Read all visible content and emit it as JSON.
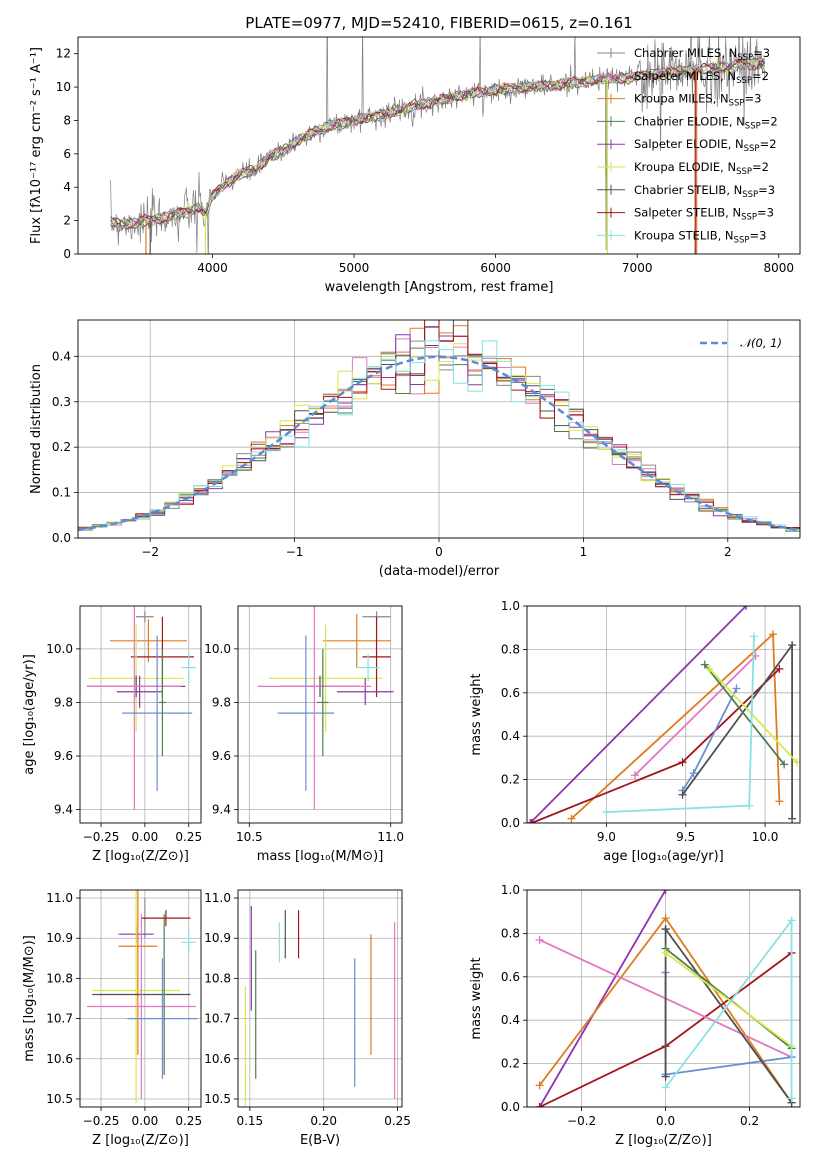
{
  "colors": {
    "Chabrier MILES": "#8a8a8a",
    "Salpeter MILES": "#e377c2",
    "Kroupa MILES": "#e07b1f",
    "Chabrier ELODIE": "#4e7d4e",
    "Salpeter ELODIE": "#8e34b1",
    "Kroupa ELODIE": "#d6e84a",
    "Chabrier STELIB": "#505050",
    "Salpeter STELIB": "#a0161b",
    "Kroupa STELIB": "#8be0e0",
    "blue": "#6a8dd6",
    "pink": "#e58ab6"
  },
  "chart_data": [
    {
      "type": "line",
      "name": "spectrum",
      "title": "PLATE=0977, MJD=52410, FIBERID=0615, z=0.161",
      "xlabel": "wavelength [Angstrom, rest frame]",
      "ylabel": "Flux [fλ10⁻¹⁷ erg cm⁻² s⁻¹ A⁻¹]",
      "xlim": [
        3050,
        8150
      ],
      "ylim": [
        0,
        13
      ],
      "xticks": [
        "4000",
        "5000",
        "6000",
        "7000",
        "8000"
      ],
      "yticks": [
        "0",
        "2",
        "4",
        "6",
        "8",
        "10",
        "12"
      ],
      "grid": false,
      "legend_position": "top-right",
      "legend": [
        {
          "model": "Chabrier MILES",
          "label": "Chabrier MILES, N",
          "sub": "SSP",
          "tail": "=3"
        },
        {
          "model": "Salpeter MILES",
          "label": "Salpeter MILES, N",
          "sub": "SSP",
          "tail": "=2"
        },
        {
          "model": "Kroupa MILES",
          "label": "Kroupa MILES, N",
          "sub": "SSP",
          "tail": "=3"
        },
        {
          "model": "Chabrier ELODIE",
          "label": "Chabrier ELODIE, N",
          "sub": "SSP",
          "tail": "=2"
        },
        {
          "model": "Salpeter ELODIE",
          "label": "Salpeter ELODIE, N",
          "sub": "SSP",
          "tail": "=2"
        },
        {
          "model": "Kroupa ELODIE",
          "label": "Kroupa ELODIE, N",
          "sub": "SSP",
          "tail": "=2"
        },
        {
          "model": "Chabrier STELIB",
          "label": "Chabrier STELIB, N",
          "sub": "SSP",
          "tail": "=3"
        },
        {
          "model": "Salpeter STELIB",
          "label": "Salpeter STELIB, N",
          "sub": "SSP",
          "tail": "=3"
        },
        {
          "model": "Kroupa STELIB",
          "label": "Kroupa STELIB, N",
          "sub": "SSP",
          "tail": "=3"
        }
      ],
      "continuum": [
        [
          3280,
          1.9
        ],
        [
          3400,
          1.8
        ],
        [
          3500,
          1.9
        ],
        [
          3600,
          2.1
        ],
        [
          3700,
          2.3
        ],
        [
          3800,
          2.5
        ],
        [
          3900,
          2.8
        ],
        [
          3950,
          2.4
        ],
        [
          4000,
          3.5
        ],
        [
          4100,
          4.3
        ],
        [
          4200,
          4.8
        ],
        [
          4300,
          5.0
        ],
        [
          4400,
          5.8
        ],
        [
          4500,
          6.2
        ],
        [
          4600,
          6.8
        ],
        [
          4700,
          7.2
        ],
        [
          4800,
          7.6
        ],
        [
          4900,
          7.8
        ],
        [
          5000,
          8.0
        ],
        [
          5100,
          8.2
        ],
        [
          5200,
          8.3
        ],
        [
          5300,
          8.6
        ],
        [
          5400,
          8.8
        ],
        [
          5500,
          9.0
        ],
        [
          5600,
          9.2
        ],
        [
          5700,
          9.4
        ],
        [
          5800,
          9.6
        ],
        [
          5900,
          9.7
        ],
        [
          6000,
          9.8
        ],
        [
          6200,
          10.0
        ],
        [
          6400,
          10.1
        ],
        [
          6600,
          10.3
        ],
        [
          6800,
          10.5
        ],
        [
          7000,
          10.6
        ],
        [
          7200,
          10.9
        ],
        [
          7400,
          11.0
        ],
        [
          7600,
          11.2
        ],
        [
          7900,
          11.5
        ]
      ]
    },
    {
      "type": "histogram",
      "name": "residuals",
      "xlabel": "(data-model)/error",
      "ylabel": "Normed distribution",
      "xlim": [
        -2.5,
        2.5
      ],
      "ylim": [
        0,
        0.48
      ],
      "xticks": [
        "−2",
        "−1",
        "0",
        "1",
        "2"
      ],
      "yticks": [
        "0.0",
        "0.1",
        "0.2",
        "0.3",
        "0.4"
      ],
      "grid": true,
      "legend_position": "top-right",
      "legend": [
        {
          "label": "𝒩(0, 1)"
        }
      ],
      "reference": {
        "mean": 0,
        "sigma": 1
      }
    },
    {
      "type": "errorbar",
      "name": "age-vs-Z",
      "xlabel": "Z [log₁₀(Z/Z⊙)]",
      "ylabel": "age  [log₁₀(age/yr)]",
      "xlim": [
        -0.37,
        0.32
      ],
      "ylim": [
        9.35,
        10.16
      ],
      "xticks": [
        "−0.25",
        "0.00",
        "0.25"
      ],
      "yticks": [
        "9.4",
        "9.6",
        "9.8",
        "10.0"
      ],
      "grid": true,
      "points": [
        {
          "model": "Chabrier MILES",
          "x": 0.0,
          "y": 10.12,
          "xerr": 0.05,
          "yerr": 0.02
        },
        {
          "model": "Kroupa MILES",
          "x": 0.02,
          "y": 10.03,
          "xerr": 0.22,
          "yerr": 0.08
        },
        {
          "model": "Salpeter STELIB",
          "x": 0.1,
          "y": 9.97,
          "xerr": 0.18,
          "yerr": 0.15
        },
        {
          "model": "Kroupa STELIB",
          "x": 0.25,
          "y": 9.93,
          "xerr": 0.04,
          "yerr": 0.06
        },
        {
          "model": "Kroupa ELODIE",
          "x": -0.05,
          "y": 9.89,
          "xerr": 0.27,
          "yerr": 0.2
        },
        {
          "model": "Chabrier STELIB",
          "x": -0.05,
          "y": 9.86,
          "xerr": 0.28,
          "yerr": 0.04
        },
        {
          "model": "Salpeter ELODIE",
          "x": -0.03,
          "y": 9.84,
          "xerr": 0.13,
          "yerr": 0.06
        },
        {
          "model": "Salpeter MILES",
          "x": -0.06,
          "y": 9.86,
          "xerr": 0.27,
          "yerr": 0.46
        },
        {
          "model": "blue",
          "x": 0.07,
          "y": 9.76,
          "xerr": 0.2,
          "yerr": 0.29
        },
        {
          "model": "Chabrier ELODIE",
          "x": 0.1,
          "y": 9.8,
          "xerr": 0.02,
          "yerr": 0.2
        }
      ]
    },
    {
      "type": "errorbar",
      "name": "age-vs-mass",
      "xlabel": "mass [log₁₀(M/M⊙)]",
      "ylabel": "",
      "xlim": [
        10.46,
        11.04
      ],
      "ylim": [
        9.35,
        10.16
      ],
      "xticks": [
        "10.5",
        "11.0"
      ],
      "yticks": [
        "9.4",
        "9.6",
        "9.8",
        "10.0"
      ],
      "grid": true,
      "points": [
        {
          "model": "Chabrier MILES",
          "x": 10.95,
          "y": 10.12,
          "xerr": 0.05,
          "yerr": 0.02
        },
        {
          "model": "Kroupa MILES",
          "x": 10.88,
          "y": 10.03,
          "xerr": 0.12,
          "yerr": 0.1
        },
        {
          "model": "Kroupa ELODIE",
          "x": 10.77,
          "y": 9.89,
          "xerr": 0.2,
          "yerr": 0.2
        },
        {
          "model": "Salpeter STELIB",
          "x": 10.95,
          "y": 9.97,
          "xerr": 0.05,
          "yerr": 0.15
        },
        {
          "model": "Chabrier STELIB",
          "x": 10.75,
          "y": 9.86,
          "xerr": 0.14,
          "yerr": 0.04
        },
        {
          "model": "Salpeter ELODIE",
          "x": 10.91,
          "y": 9.84,
          "xerr": 0.1,
          "yerr": 0.05
        },
        {
          "model": "Kroupa STELIB",
          "x": 10.92,
          "y": 9.93,
          "xerr": 0.04,
          "yerr": 0.05
        },
        {
          "model": "blue",
          "x": 10.7,
          "y": 9.76,
          "xerr": 0.1,
          "yerr": 0.29
        },
        {
          "model": "Salpeter MILES",
          "x": 10.73,
          "y": 9.86,
          "xerr": 0.2,
          "yerr": 0.46
        },
        {
          "model": "Chabrier ELODIE",
          "x": 10.76,
          "y": 9.8,
          "xerr": 0.02,
          "yerr": 0.2
        }
      ]
    },
    {
      "type": "line",
      "name": "mass-weight-vs-age",
      "xlabel": "age  [log₁₀(age/yr)]",
      "ylabel": "mass weight",
      "xlim": [
        8.5,
        10.22
      ],
      "ylim": [
        0,
        1
      ],
      "xticks": [
        "9.0",
        "9.5",
        "10.0"
      ],
      "yticks": [
        "0.0",
        "0.2",
        "0.4",
        "0.6",
        "0.8",
        "1.0"
      ],
      "grid": true,
      "series": [
        {
          "model": "Salpeter ELODIE",
          "points": [
            [
              8.52,
              0.0
            ],
            [
              9.88,
              1.0
            ]
          ]
        },
        {
          "model": "Kroupa MILES",
          "points": [
            [
              8.78,
              0.02
            ],
            [
              10.05,
              0.87
            ],
            [
              10.09,
              0.1
            ]
          ]
        },
        {
          "model": "Salpeter STELIB",
          "points": [
            [
              8.53,
              0.0
            ],
            [
              9.48,
              0.28
            ],
            [
              10.09,
              0.71
            ]
          ]
        },
        {
          "model": "Salpeter MILES",
          "points": [
            [
              9.18,
              0.22
            ],
            [
              9.94,
              0.77
            ]
          ]
        },
        {
          "model": "blue",
          "points": [
            [
              9.48,
              0.15
            ],
            [
              9.55,
              0.23
            ],
            [
              9.82,
              0.62
            ]
          ]
        },
        {
          "model": "Chabrier STELIB",
          "points": [
            [
              9.48,
              0.13
            ],
            [
              10.17,
              0.82
            ],
            [
              10.17,
              0.02
            ]
          ]
        },
        {
          "model": "Chabrier ELODIE",
          "points": [
            [
              9.62,
              0.73
            ],
            [
              10.12,
              0.27
            ]
          ]
        },
        {
          "model": "Kroupa ELODIE",
          "points": [
            [
              9.65,
              0.71
            ],
            [
              10.2,
              0.28
            ]
          ]
        },
        {
          "model": "Kroupa STELIB",
          "points": [
            [
              9.0,
              0.05
            ],
            [
              9.9,
              0.08
            ],
            [
              9.93,
              0.86
            ]
          ]
        }
      ]
    },
    {
      "type": "errorbar",
      "name": "mass-vs-Z",
      "xlabel": "Z [log₁₀(Z/Z⊙)]",
      "ylabel": "mass [log₁₀(M/M⊙)]",
      "xlim": [
        -0.37,
        0.32
      ],
      "ylim": [
        10.48,
        11.02
      ],
      "xticks": [
        "−0.25",
        "0.00",
        "0.25"
      ],
      "yticks": [
        "10.5",
        "10.6",
        "10.7",
        "10.8",
        "10.9",
        "11.0"
      ],
      "grid": true,
      "points": [
        {
          "model": "Chabrier MILES",
          "x": 0.0,
          "y": 10.95,
          "xerr": 0.01,
          "yerr": 0.05
        },
        {
          "model": "Salpeter STELIB",
          "x": 0.12,
          "y": 10.95,
          "xerr": 0.14,
          "yerr": 0.02
        },
        {
          "model": "Salpeter ELODIE",
          "x": -0.05,
          "y": 10.91,
          "xerr": 0.1,
          "yerr": 0.02
        },
        {
          "model": "Kroupa STELIB",
          "x": 0.25,
          "y": 10.89,
          "xerr": 0.04,
          "yerr": 0.03
        },
        {
          "model": "Kroupa MILES",
          "x": -0.04,
          "y": 10.88,
          "xerr": 0.11,
          "yerr": 0.27
        },
        {
          "model": "Kroupa ELODIE",
          "x": -0.05,
          "y": 10.77,
          "xerr": 0.25,
          "yerr": 0.28
        },
        {
          "model": "Chabrier STELIB",
          "x": -0.02,
          "y": 10.76,
          "xerr": 0.28,
          "yerr": 0.01
        },
        {
          "model": "Salpeter MILES",
          "x": -0.02,
          "y": 10.73,
          "xerr": 0.31,
          "yerr": 0.23
        },
        {
          "model": "blue",
          "x": 0.1,
          "y": 10.7,
          "xerr": 0.2,
          "yerr": 0.15
        },
        {
          "model": "Chabrier ELODIE",
          "x": 0.11,
          "y": 10.76,
          "xerr": 0.01,
          "yerr": 0.2
        }
      ]
    },
    {
      "type": "errorbar",
      "name": "mass-vs-EBV",
      "xlabel": "E(B-V)",
      "ylabel": "",
      "xlim": [
        0.142,
        0.253
      ],
      "ylim": [
        10.48,
        11.02
      ],
      "xticks": [
        "0.15",
        "0.20",
        "0.25"
      ],
      "yticks": [
        "10.5",
        "10.6",
        "10.7",
        "10.8",
        "10.9",
        "11.0"
      ],
      "grid": true,
      "points": [
        {
          "model": "Salpeter ELODIE",
          "x": 0.151,
          "y": 10.85,
          "yerr": 0.13
        },
        {
          "model": "Chabrier ELODIE",
          "x": 0.154,
          "y": 10.71,
          "yerr": 0.16
        },
        {
          "model": "Kroupa ELODIE",
          "x": 0.147,
          "y": 10.63,
          "yerr": 0.15
        },
        {
          "model": "Chabrier STELIB",
          "x": 0.174,
          "y": 10.91,
          "yerr": 0.06
        },
        {
          "model": "Kroupa STELIB",
          "x": 0.17,
          "y": 10.89,
          "yerr": 0.05
        },
        {
          "model": "Salpeter STELIB",
          "x": 0.183,
          "y": 10.91,
          "yerr": 0.06
        },
        {
          "model": "blue",
          "x": 0.221,
          "y": 10.69,
          "yerr": 0.16
        },
        {
          "model": "Kroupa MILES",
          "x": 0.232,
          "y": 10.76,
          "yerr": 0.15
        },
        {
          "model": "Salpeter MILES",
          "x": 0.248,
          "y": 10.72,
          "yerr": 0.22
        }
      ]
    },
    {
      "type": "line",
      "name": "mass-weight-vs-Z",
      "xlabel": "Z [log₁₀(Z/Z⊙)]",
      "ylabel": "mass weight",
      "xlim": [
        -0.33,
        0.32
      ],
      "ylim": [
        0,
        1
      ],
      "xticks": [
        "−0.2",
        "0.0",
        "0.2"
      ],
      "yticks": [
        "0.0",
        "0.2",
        "0.4",
        "0.6",
        "0.8",
        "1.0"
      ],
      "grid": true,
      "series": [
        {
          "model": "Salpeter ELODIE",
          "points": [
            [
              -0.3,
              0.0
            ],
            [
              0.0,
              1.0
            ]
          ]
        },
        {
          "model": "Kroupa MILES",
          "points": [
            [
              -0.3,
              0.1
            ],
            [
              0.0,
              0.87
            ],
            [
              0.3,
              0.02
            ]
          ]
        },
        {
          "model": "Salpeter STELIB",
          "points": [
            [
              -0.3,
              0.0
            ],
            [
              0.0,
              0.28
            ],
            [
              0.3,
              0.71
            ]
          ]
        },
        {
          "model": "Salpeter MILES",
          "points": [
            [
              -0.3,
              0.77
            ],
            [
              0.3,
              0.23
            ]
          ]
        },
        {
          "model": "blue",
          "points": [
            [
              0.0,
              0.15
            ],
            [
              0.0,
              0.62
            ],
            [
              0.0,
              0.15
            ],
            [
              0.3,
              0.23
            ]
          ]
        },
        {
          "model": "Chabrier STELIB",
          "points": [
            [
              0.0,
              0.82
            ],
            [
              0.0,
              0.14
            ],
            [
              0.0,
              0.82
            ],
            [
              0.3,
              0.02
            ]
          ]
        },
        {
          "model": "Chabrier ELODIE",
          "points": [
            [
              0.0,
              0.73
            ],
            [
              0.3,
              0.27
            ]
          ]
        },
        {
          "model": "Kroupa ELODIE",
          "points": [
            [
              0.0,
              0.71
            ],
            [
              0.3,
              0.28
            ]
          ]
        },
        {
          "model": "Kroupa STELIB",
          "points": [
            [
              0.0,
              0.09
            ],
            [
              0.3,
              0.86
            ],
            [
              0.3,
              0.04
            ]
          ]
        }
      ]
    }
  ]
}
